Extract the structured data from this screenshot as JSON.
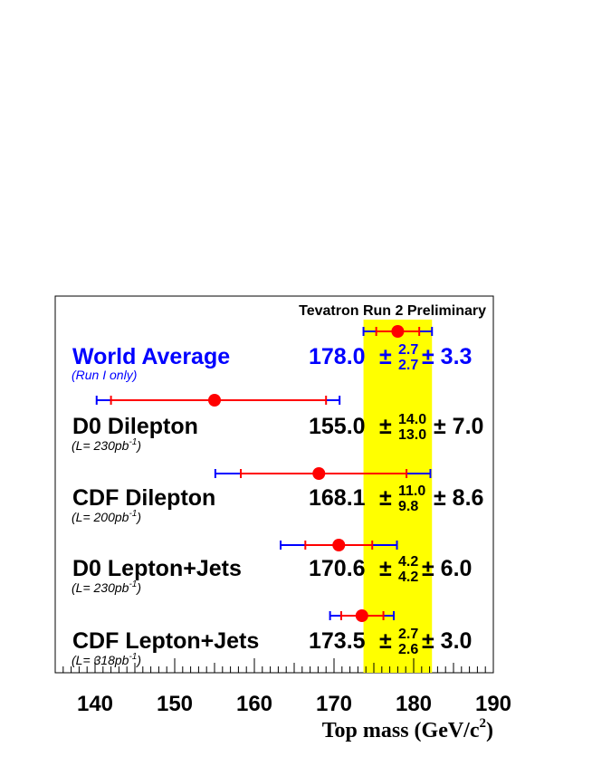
{
  "chart_data": {
    "type": "scatter",
    "title": "Tevatron Run 2 Preliminary",
    "xlabel": "Top mass (GeV/c",
    "xlabel_sup": "2",
    "xlabel_close": ")",
    "xlim": [
      135,
      190
    ],
    "xticks": [
      140,
      150,
      160,
      170,
      180,
      190
    ],
    "band": {
      "center": 178.0,
      "low": 173.7,
      "high": 182.3,
      "color": "#ffff00"
    },
    "stat_color": "#ff0000",
    "total_color": "#0000ff",
    "rows": [
      {
        "name": "World Average",
        "sub": "(Run I only)",
        "color": "#0000ff",
        "value": 178.0,
        "stat_up": 2.7,
        "stat_down": 2.7,
        "syst": 3.3,
        "value_text": "178.0",
        "stat_up_text": "2.7",
        "stat_down_text": "2.7",
        "syst_text": "3.3",
        "stat_low": 175.3,
        "stat_high": 180.7,
        "tot_low": 173.7,
        "tot_high": 182.3
      },
      {
        "name": "D0 Dilepton",
        "sub": "(L= 230pb",
        "sub_sup": "-1",
        "sub_close": ")",
        "color": "#000000",
        "value": 155.0,
        "stat_up": 14.0,
        "stat_down": 13.0,
        "syst": 7.0,
        "value_text": "155.0",
        "stat_up_text": "14.0",
        "stat_down_text": "13.0",
        "syst_text": "7.0",
        "stat_low": 142.0,
        "stat_high": 169.0,
        "tot_low": 140.2,
        "tot_high": 170.7
      },
      {
        "name": "CDF Dilepton",
        "sub": "(L= 200pb",
        "sub_sup": "-1",
        "sub_close": ")",
        "color": "#000000",
        "value": 168.1,
        "stat_up": 11.0,
        "stat_down": 9.8,
        "syst": 8.6,
        "value_text": "168.1",
        "stat_up_text": "11.0",
        "stat_down_text": "9.8",
        "syst_text": "8.6",
        "stat_low": 158.3,
        "stat_high": 179.1,
        "tot_low": 155.1,
        "tot_high": 182.1
      },
      {
        "name": "D0 Lepton+Jets",
        "sub": "(L= 230pb",
        "sub_sup": "-1",
        "sub_close": ")",
        "color": "#000000",
        "value": 170.6,
        "stat_up": 4.2,
        "stat_down": 4.2,
        "syst": 6.0,
        "value_text": "170.6",
        "stat_up_text": "4.2",
        "stat_down_text": "4.2",
        "syst_text": "6.0",
        "stat_low": 166.4,
        "stat_high": 174.8,
        "tot_low": 163.3,
        "tot_high": 177.9
      },
      {
        "name": "CDF Lepton+Jets",
        "sub": "(L= 318pb",
        "sub_sup": "-1",
        "sub_close": ")",
        "color": "#000000",
        "value": 173.5,
        "stat_up": 2.7,
        "stat_down": 2.6,
        "syst": 3.0,
        "value_text": "173.5",
        "stat_up_text": "2.7",
        "stat_down_text": "2.6",
        "syst_text": "3.0",
        "stat_low": 170.9,
        "stat_high": 176.2,
        "tot_low": 169.5,
        "tot_high": 177.5
      }
    ]
  }
}
